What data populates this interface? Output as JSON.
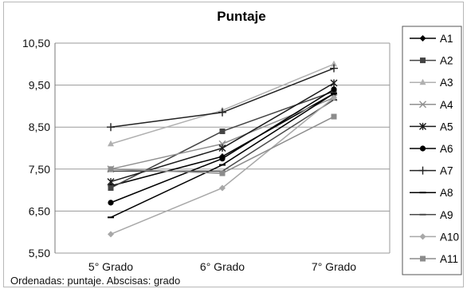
{
  "chart_data": {
    "type": "line",
    "title": "Puntaje",
    "caption": "Ordenadas: puntaje. Abscisas: grado",
    "categories": [
      "5° Grado",
      "6° Grado",
      "7° Grado"
    ],
    "ylim": [
      5.5,
      10.5
    ],
    "yticks": [
      "5,50",
      "6,50",
      "7,50",
      "8,50",
      "9,50",
      "10,50"
    ],
    "grid": true,
    "legend_position": "right",
    "series": [
      {
        "name": "A1",
        "values": [
          7.1,
          7.8,
          9.3
        ],
        "color": "#000000",
        "marker": "diamond"
      },
      {
        "name": "A2",
        "values": [
          7.05,
          8.4,
          9.35
        ],
        "color": "#444444",
        "marker": "square"
      },
      {
        "name": "A3",
        "values": [
          8.1,
          8.9,
          10.0
        ],
        "color": "#b0b0b0",
        "marker": "triangle"
      },
      {
        "name": "A4",
        "values": [
          7.5,
          8.1,
          9.2
        ],
        "color": "#909090",
        "marker": "x"
      },
      {
        "name": "A5",
        "values": [
          7.2,
          8.0,
          9.55
        ],
        "color": "#1a1a1a",
        "marker": "star"
      },
      {
        "name": "A6",
        "values": [
          6.7,
          7.75,
          9.4
        ],
        "color": "#000000",
        "marker": "circle"
      },
      {
        "name": "A7",
        "values": [
          8.5,
          8.85,
          9.9
        ],
        "color": "#222222",
        "marker": "plus"
      },
      {
        "name": "A8",
        "values": [
          6.35,
          7.6,
          9.3
        ],
        "color": "#000000",
        "marker": "dash"
      },
      {
        "name": "A9",
        "values": [
          7.45,
          7.45,
          9.15
        ],
        "color": "#4a4a4a",
        "marker": "dash"
      },
      {
        "name": "A10",
        "values": [
          5.95,
          7.05,
          9.2
        ],
        "color": "#a8a8a8",
        "marker": "diamond"
      },
      {
        "name": "A11",
        "values": [
          7.5,
          7.4,
          8.75
        ],
        "color": "#8c8c8c",
        "marker": "square"
      }
    ]
  }
}
